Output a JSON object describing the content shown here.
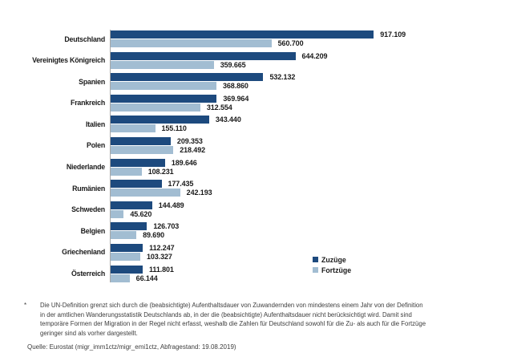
{
  "chart_data": {
    "type": "bar",
    "orientation": "horizontal",
    "title": "",
    "xlabel": "",
    "ylabel": "",
    "grid": false,
    "value_labels": true,
    "xlim": [
      0,
      950000
    ],
    "legend_position": "right-middle",
    "categories": [
      "Deutschland",
      "Vereinigtes Königreich",
      "Spanien",
      "Frankreich",
      "Italien",
      "Polen",
      "Niederlande",
      "Rumänien",
      "Schweden",
      "Belgien",
      "Griechenland",
      "Österreich"
    ],
    "series": [
      {
        "name": "Zuzüge",
        "color": "#1d4a7e",
        "values": [
          917109,
          644209,
          532132,
          369964,
          343440,
          209353,
          189646,
          177435,
          144489,
          126703,
          112247,
          111801
        ],
        "labels": [
          "917.109",
          "644.209",
          "532.132",
          "369.964",
          "343.440",
          "209.353",
          "189.646",
          "177.435",
          "144.489",
          "126.703",
          "112.247",
          "111.801"
        ]
      },
      {
        "name": "Fortzüge",
        "color": "#a2bdd2",
        "values": [
          560700,
          359665,
          368860,
          312554,
          155110,
          218492,
          108231,
          242193,
          45620,
          89690,
          103327,
          66144
        ],
        "labels": [
          "560.700",
          "359.665",
          "368.860",
          "312.554",
          "155.110",
          "218.492",
          "108.231",
          "242.193",
          "45.620",
          "89.690",
          "103.327",
          "66.144"
        ]
      }
    ]
  },
  "footnote": {
    "marker": "*",
    "lines": [
      "Die UN-Definition grenzt sich durch die (beabsichtigte) Aufenthaltsdauer von Zuwandernden von mindestens einem Jahr von der Definition",
      "in der amtlichen Wanderungsstatistik Deutschlands ab, in der die (beabsichtigte) Aufenthaltsdauer nicht berücksichtigt wird. Damit sind",
      "temporäre Formen der Migration in der Regel nicht erfasst, weshalb die Zahlen für Deutschland sowohl für die Zu- als auch für die Fortzüge",
      "geringer sind als vorher dargestellt."
    ]
  },
  "source": "Quelle: Eurostat (migr_imm1ctz/migr_emi1ctz, Abfragestand: 19.08.2019)"
}
